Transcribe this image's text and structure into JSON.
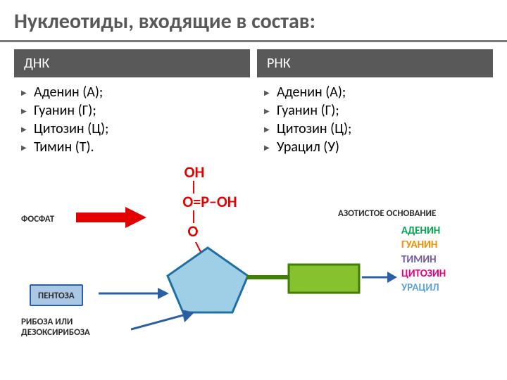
{
  "title": {
    "text": "Нуклеотиды, входящие в состав:",
    "fontsize": 30,
    "color": "#595959",
    "underline_color": "#7a7a7a"
  },
  "columns": {
    "header_bg": "#595959",
    "header_color": "#ffffff",
    "bullet_color": "#595959",
    "left": {
      "header": "ДНК",
      "items": [
        "Аденин (А);",
        "Гуанин (Г);",
        "Цитозин (Ц);",
        "Тимин (Т)."
      ]
    },
    "right": {
      "header": "РНК",
      "items": [
        "Аденин (А);",
        "Гуанин (Г);",
        "Цитозин (Ц);",
        "Урацил (У)"
      ]
    }
  },
  "diagram": {
    "labels": {
      "phosphate": {
        "text": "ФОСФАТ",
        "color": "#2b2b2b",
        "fontsize": 13
      },
      "base": {
        "text": "АЗОТИСТОЕ ОСНОВАНИЕ",
        "color": "#2b2b2b",
        "fontsize": 13
      },
      "pentose": {
        "text": "ПЕНТОЗА",
        "color": "#2b2b2b",
        "fontsize": 13
      },
      "riboza_l1": {
        "text": "РИБОЗА ИЛИ",
        "color": "#2b2b2b",
        "fontsize": 13
      },
      "riboza_l2": {
        "text": "ДЕЗОКСИРИБОЗА",
        "color": "#2b2b2b",
        "fontsize": 13
      }
    },
    "bases": {
      "adenine": {
        "text": "АДЕНИН",
        "color": "#00a650"
      },
      "guanine": {
        "text": "ГУАНИН",
        "color": "#f18e00"
      },
      "thymine": {
        "text": "ТИМИН",
        "color": "#6f5ba3"
      },
      "cytosine": {
        "text": "ЦИТОЗИН",
        "color": "#e6007e"
      },
      "uracil": {
        "text": "УРАЦИЛ",
        "color": "#5ea1d8"
      },
      "fontsize": 15
    },
    "chem": {
      "OH_top": "OH",
      "O_eq": "O",
      "P": "P",
      "OH_right": "OH",
      "O_bottom": "O",
      "color": "#e30000",
      "fontsize": 22
    },
    "shapes": {
      "pentagon_fill": "#9ecfe6",
      "pentagon_stroke": "#1f6fa3",
      "pentagon_stroke_w": 3,
      "base_box_fill": "#85c22e",
      "base_box_stroke": "#3f7f00",
      "base_box_stroke_w": 3,
      "connector_color": "#3f7f00",
      "connector_w": 6,
      "red_arrow_fill": "#e30000",
      "blue_arrow_stroke": "#2a5fa4",
      "blue_arrow_stroke_w": 3,
      "blue_box_fill": "#aac7e6",
      "blue_box_stroke": "#2a5fa4",
      "blue_box_stroke_w": 2
    }
  }
}
